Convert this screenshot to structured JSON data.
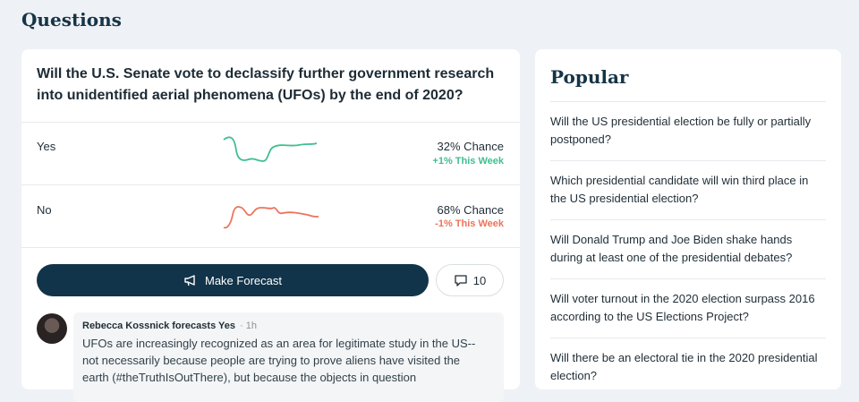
{
  "header": {
    "title": "Questions"
  },
  "question": {
    "title": "Will the U.S. Senate vote to declassify further government research into unidentified aerial phenomena (UFOs) by the end of 2020?",
    "outcomes": [
      {
        "label": "Yes",
        "chance": "32% Chance",
        "change": "+1% This Week"
      },
      {
        "label": "No",
        "chance": "68% Chance",
        "change": "-1% This Week"
      }
    ],
    "forecast_button": "Make Forecast",
    "comment_count": "10",
    "comment": {
      "author_line": "Rebecca Kossnick forecasts Yes",
      "time": "· 1h",
      "text": "UFOs are increasingly recognized as an area for legitimate study in the US--not necessarily because people are trying to prove aliens have visited the earth (#theTruthIsOutThere), but because the objects in question"
    }
  },
  "popular": {
    "title": "Popular",
    "items": [
      "Will the US presidential election be fully or partially postponed?",
      "Which presidential candidate will win third place in the US presidential election?",
      "Will Donald Trump and Joe Biden shake hands during at least one of the presidential debates?",
      "Will voter turnout in the 2020 election surpass 2016 according to the US Elections Project?",
      "Will there be an electoral tie in the 2020 presidential election?"
    ]
  }
}
